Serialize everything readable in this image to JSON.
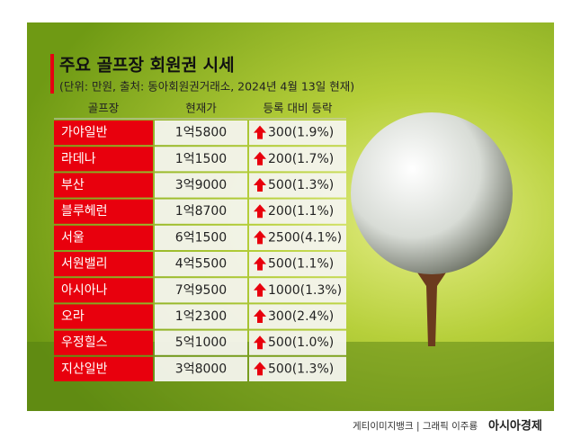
{
  "header": {
    "title": "주요 골프장 회원권 시세",
    "subtitle": "(단위: 만원, 출처: 동아회원권거래소, 2024년 4월 13일 현재)"
  },
  "table": {
    "header": [
      "골프장",
      "현재가",
      "등록 대비 등락"
    ],
    "rows": [
      [
        "가야일반",
        "1억5800",
        "300(1.9%)"
      ],
      [
        "라데나",
        "1억1500",
        "200(1.7%)"
      ],
      [
        "부산",
        "3억9000",
        "500(1.3%)"
      ],
      [
        "블루헤런",
        "1억8700",
        "200(1.1%)"
      ],
      [
        "서울",
        "6억1500",
        "2500(4.1%)"
      ],
      [
        "서원밸리",
        "4억5500",
        "500(1.1%)"
      ],
      [
        "아시아나",
        "7억9500",
        "1000(1.3%)"
      ],
      [
        "오라",
        "1억2300",
        "300(2.4%)"
      ],
      [
        "우정힐스",
        "5억1000",
        "500(1.0%)"
      ],
      [
        "지산일반",
        "3억8000",
        "500(1.3%)"
      ]
    ]
  },
  "footer": {
    "credit": "게티이미지뱅크 | 그래픽 이주룡",
    "brand": "아시아경제"
  }
}
